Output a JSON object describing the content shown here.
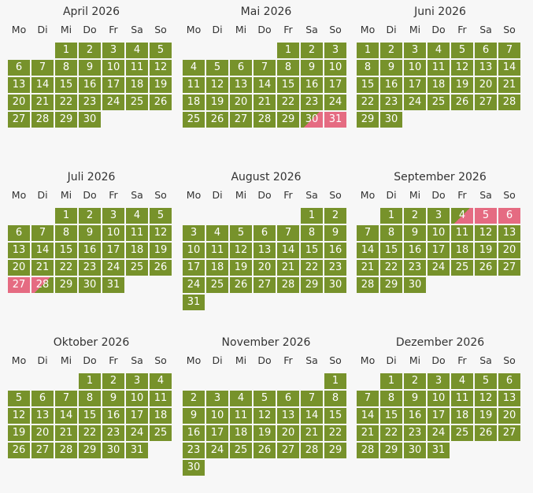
{
  "weekdays": [
    "Mo",
    "Di",
    "Mi",
    "Do",
    "Fr",
    "Sa",
    "So"
  ],
  "colors": {
    "available": "#77922b",
    "booked": "#e56b82",
    "background": "#f7f7f7"
  },
  "months": [
    {
      "title": "April 2026",
      "offset": 2,
      "days": 30,
      "booked": {}
    },
    {
      "title": "Mai 2026",
      "offset": 4,
      "days": 31,
      "booked": {
        "30": "right",
        "31": "full"
      }
    },
    {
      "title": "Juni 2026",
      "offset": 0,
      "days": 30,
      "booked": {}
    },
    {
      "title": "Juli 2026",
      "offset": 2,
      "days": 31,
      "booked": {
        "27": "full",
        "28": "left"
      }
    },
    {
      "title": "August 2026",
      "offset": 5,
      "days": 31,
      "booked": {}
    },
    {
      "title": "September 2026",
      "offset": 1,
      "days": 30,
      "booked": {
        "4": "right",
        "5": "full",
        "6": "full"
      }
    },
    {
      "title": "Oktober 2026",
      "offset": 3,
      "days": 31,
      "booked": {}
    },
    {
      "title": "November 2026",
      "offset": 6,
      "days": 30,
      "booked": {}
    },
    {
      "title": "Dezember 2026",
      "offset": 1,
      "days": 31,
      "booked": {}
    }
  ]
}
